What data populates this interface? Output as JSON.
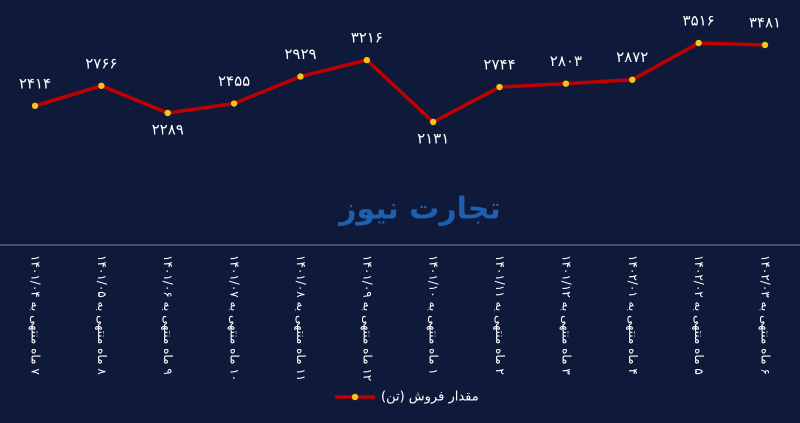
{
  "chart_data": {
    "type": "line",
    "watermark": "تجارت نیوز",
    "categories": [
      "۷ ماه منتهی به ۱۴۰۱/۰۴",
      "۸ ماه منتهی به ۱۴۰۱/۰۵",
      "۹ ماه منتهی به ۱۴۰۱/۰۶",
      "۱۰ ماه منتهی به ۱۴۰۱/۰۷",
      "۱۱ ماه منتهی به ۱۴۰۱/۰۸",
      "۱۲ ماه منتهی به ۱۴۰۱/۰۹",
      "۱ ماه منتهی به ۱۴۰۱/۱۰",
      "۲ ماه منتهی به ۱۴۰۱/۱۱",
      "۳ ماه منتهی به ۱۴۰۱/۱۲",
      "۴ ماه منتهی به ۱۴۰۲/۰۱",
      "۵ ماه منتهی به ۱۴۰۲/۰۲",
      "۶ ماه منتهی به ۱۴۰۲/۰۳"
    ],
    "series": [
      {
        "name": "مقدار فروش (تن)",
        "color": "#c00000",
        "marker_color": "#f5c518",
        "values": [
          2414,
          2766,
          2289,
          2455,
          2929,
          3216,
          2131,
          2744,
          2803,
          2872,
          3516,
          3481
        ],
        "value_labels": [
          "۲۴۱۴",
          "۲۷۶۶",
          "۲۲۸۹",
          "۲۴۵۵",
          "۲۹۲۹",
          "۳۲۱۶",
          "۲۱۳۱",
          "۲۷۴۴",
          "۲۸۰۳",
          "۲۸۷۲",
          "۳۵۱۶",
          "۳۴۸۱"
        ]
      }
    ],
    "legend": "bottom"
  }
}
